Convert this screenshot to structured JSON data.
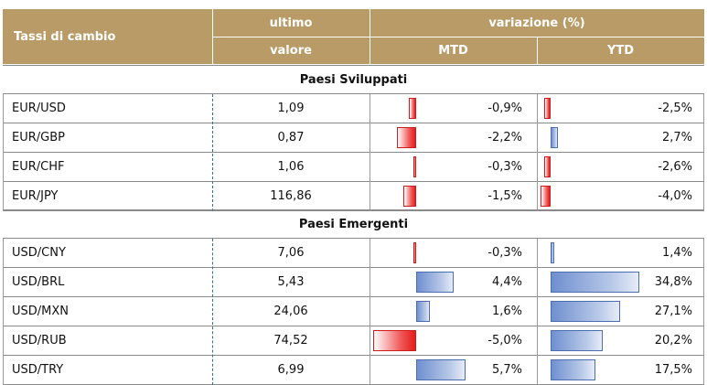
{
  "header": {
    "title": "Tassi di cambio",
    "last_top": "ultimo",
    "last_bottom": "valore",
    "variation": "variazione (%)",
    "mtd": "MTD",
    "ytd": "YTD"
  },
  "sections": [
    {
      "title": "Paesi Sviluppati",
      "rows": [
        {
          "pair": "EUR/USD",
          "value": "1,09",
          "mtd": "-0,9%",
          "mtd_num": -0.9,
          "ytd": "-2,5%",
          "ytd_num": -2.5
        },
        {
          "pair": "EUR/GBP",
          "value": "0,87",
          "mtd": "-2,2%",
          "mtd_num": -2.2,
          "ytd": "2,7%",
          "ytd_num": 2.7
        },
        {
          "pair": "EUR/CHF",
          "value": "1,06",
          "mtd": "-0,3%",
          "mtd_num": -0.3,
          "ytd": "-2,6%",
          "ytd_num": -2.6
        },
        {
          "pair": "EUR/JPY",
          "value": "116,86",
          "mtd": "-1,5%",
          "mtd_num": -1.5,
          "ytd": "-4,0%",
          "ytd_num": -4.0
        }
      ]
    },
    {
      "title": "Paesi Emergenti",
      "rows": [
        {
          "pair": "USD/CNY",
          "value": "7,06",
          "mtd": "-0,3%",
          "mtd_num": -0.3,
          "ytd": "1,4%",
          "ytd_num": 1.4
        },
        {
          "pair": "USD/BRL",
          "value": "5,43",
          "mtd": "4,4%",
          "mtd_num": 4.4,
          "ytd": "34,8%",
          "ytd_num": 34.8
        },
        {
          "pair": "USD/MXN",
          "value": "24,06",
          "mtd": "1,6%",
          "mtd_num": 1.6,
          "ytd": "27,1%",
          "ytd_num": 27.1
        },
        {
          "pair": "USD/RUB",
          "value": "74,52",
          "mtd": "-5,0%",
          "mtd_num": -5.0,
          "ytd": "20,2%",
          "ytd_num": 20.2
        },
        {
          "pair": "USD/TRY",
          "value": "6,99",
          "mtd": "5,7%",
          "mtd_num": 5.7,
          "ytd": "17,5%",
          "ytd_num": 17.5
        }
      ]
    }
  ],
  "colors": {
    "header_bg": "#b89b66",
    "negative_bar": "#e51c1c",
    "positive_bar": "#6f8fcf"
  }
}
